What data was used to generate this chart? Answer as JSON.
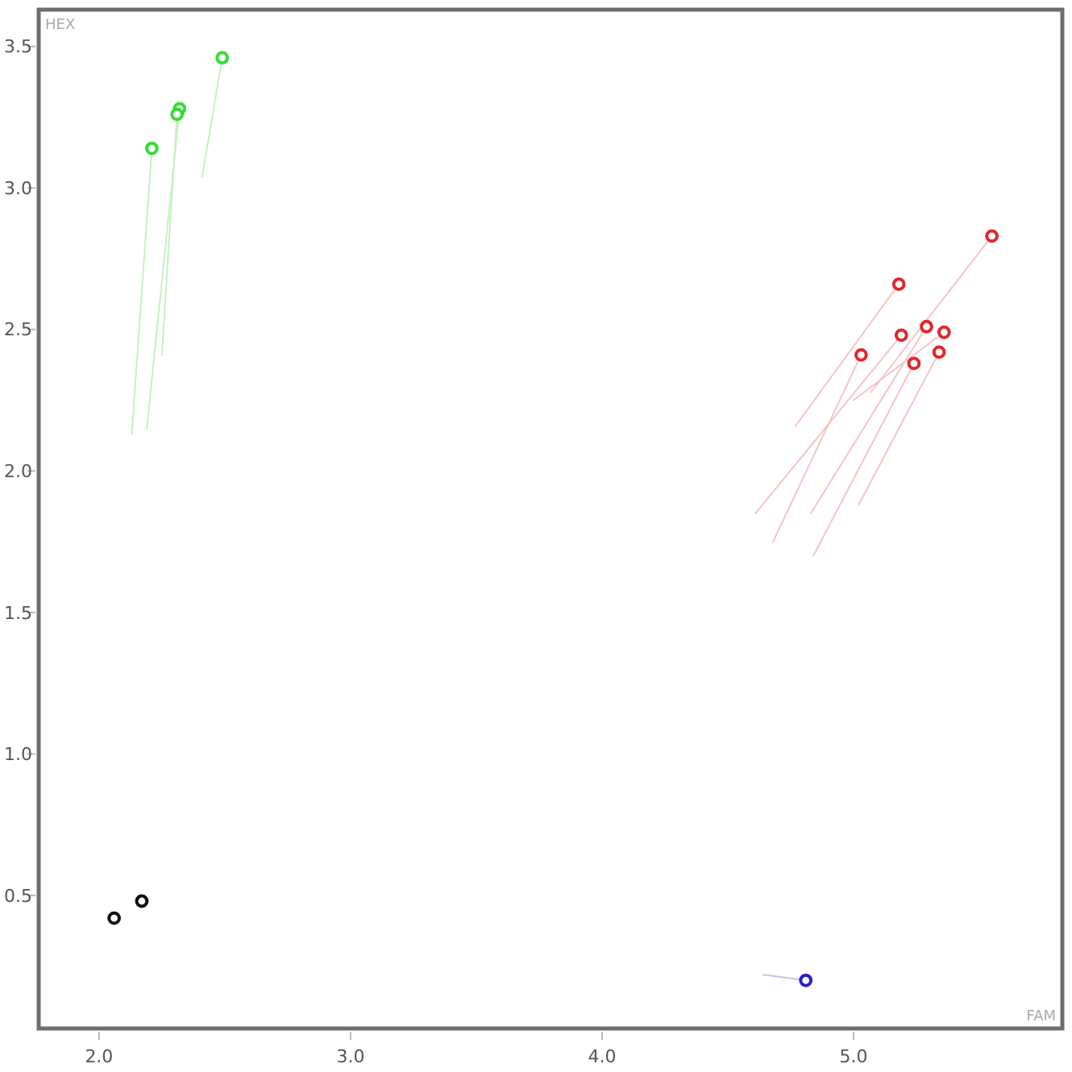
{
  "chart_data": {
    "type": "scatter",
    "xlabel": "FAM",
    "ylabel": "HEX",
    "marker": "circle",
    "xlim": [
      1.76,
      5.83
    ],
    "ylim": [
      0.03,
      3.63
    ],
    "xticks": [
      {
        "value": 2,
        "label": "2.0"
      },
      {
        "value": 3,
        "label": "3.0"
      },
      {
        "value": 4,
        "label": "4.0"
      },
      {
        "value": 5,
        "label": "5.0"
      }
    ],
    "yticks": [
      0.5,
      {
        "value": 1,
        "label": "1.0"
      },
      1.5,
      {
        "value": 2,
        "label": "2.0"
      },
      2.5,
      {
        "value": 3,
        "label": "3.0"
      },
      3.5
    ],
    "series": [
      {
        "type": "line",
        "marker": "none",
        "color": "#c4f2c4",
        "x": [
          2.13,
          2.21
        ],
        "values": [
          2.13,
          3.14
        ]
      },
      {
        "type": "line",
        "marker": "none",
        "color": "#c4f2c4",
        "x": [
          2.19,
          2.32
        ],
        "values": [
          2.15,
          3.28
        ]
      },
      {
        "type": "line",
        "marker": "none",
        "color": "#c4f2c4",
        "x": [
          2.25,
          2.31
        ],
        "values": [
          2.41,
          3.26
        ]
      },
      {
        "type": "line",
        "marker": "none",
        "color": "#c4f2c4",
        "x": [
          2.41,
          2.49
        ],
        "values": [
          3.04,
          3.46
        ]
      },
      {
        "type": "line",
        "marker": "none",
        "color": "#f6c4c4",
        "x": [
          5.07,
          5.55
        ],
        "values": [
          2.28,
          2.83
        ]
      },
      {
        "type": "line",
        "marker": "none",
        "color": "#f6c4c4",
        "x": [
          4.77,
          5.18
        ],
        "values": [
          2.16,
          2.66
        ]
      },
      {
        "type": "line",
        "marker": "none",
        "color": "#f6c4c4",
        "x": [
          4.83,
          5.29
        ],
        "values": [
          1.85,
          2.51
        ]
      },
      {
        "type": "line",
        "marker": "none",
        "color": "#f6c4c4",
        "x": [
          5.0,
          5.36
        ],
        "values": [
          2.25,
          2.49
        ]
      },
      {
        "type": "line",
        "marker": "none",
        "color": "#f6c4c4",
        "x": [
          4.61,
          5.19
        ],
        "values": [
          1.85,
          2.48
        ]
      },
      {
        "type": "line",
        "marker": "none",
        "color": "#f6c4c4",
        "x": [
          4.68,
          5.03
        ],
        "values": [
          1.75,
          2.41
        ]
      },
      {
        "type": "line",
        "marker": "none",
        "color": "#f6c4c4",
        "x": [
          5.02,
          5.34
        ],
        "values": [
          1.88,
          2.42
        ]
      },
      {
        "type": "line",
        "marker": "none",
        "color": "#f6c4c4",
        "x": [
          4.84,
          5.24
        ],
        "values": [
          1.7,
          2.38
        ]
      },
      {
        "type": "line",
        "marker": "none",
        "color": "#c4c4ee",
        "x": [
          4.64,
          4.81
        ],
        "values": [
          0.22,
          0.2
        ]
      },
      {
        "color": "#33dd33",
        "x": [
          2.21,
          2.32,
          2.31,
          2.49
        ],
        "values": [
          3.14,
          3.28,
          3.26,
          3.46
        ]
      },
      {
        "color": "#e02828",
        "x": [
          5.55,
          5.18,
          5.29,
          5.36,
          5.19,
          5.03,
          5.34,
          5.24
        ],
        "values": [
          2.83,
          2.66,
          2.51,
          2.49,
          2.48,
          2.41,
          2.42,
          2.38
        ]
      },
      {
        "color": "#111111",
        "x": [
          2.06,
          2.17
        ],
        "values": [
          0.42,
          0.48
        ]
      },
      {
        "color": "#2222cc",
        "x": [
          4.81
        ],
        "values": [
          0.2
        ]
      }
    ]
  }
}
